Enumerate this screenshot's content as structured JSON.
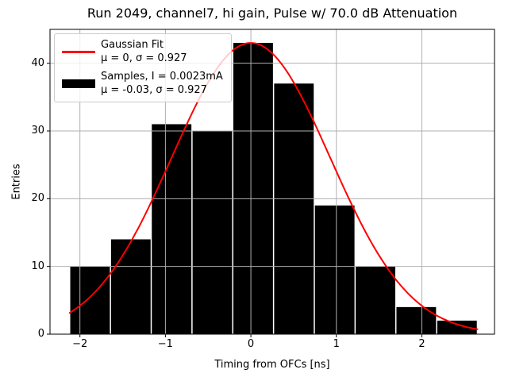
{
  "chart_data": {
    "type": "bar",
    "subtype": "histogram-with-fit",
    "title": "Run 2049, channel7, hi gain, Pulse w/ 70.0 dB Attenuation",
    "xlabel": "Timing from OFCs [ns]",
    "ylabel": "Entries",
    "xlim": [
      -2.35,
      2.85
    ],
    "ylim": [
      0,
      45
    ],
    "xticks": [
      -2,
      -1,
      0,
      1,
      2
    ],
    "xtick_labels": [
      "−2",
      "−1",
      "0",
      "1",
      "2"
    ],
    "yticks": [
      0,
      10,
      20,
      30,
      40
    ],
    "ytick_labels": [
      "0",
      "10",
      "20",
      "30",
      "40"
    ],
    "grid": true,
    "histogram": {
      "bin_edges": [
        -2.12,
        -1.643,
        -1.166,
        -0.689,
        -0.212,
        0.265,
        0.742,
        1.219,
        1.696,
        2.173,
        2.65
      ],
      "counts": [
        10,
        14,
        31,
        30,
        43,
        37,
        19,
        10,
        4,
        2
      ],
      "total_entries": 200
    },
    "fit_curve": {
      "type": "gaussian",
      "mu": 0,
      "sigma": 0.927,
      "amplitude": 43,
      "x_min": -2.12,
      "x_max": 2.65,
      "linewidth": 2
    },
    "colors": {
      "bar": "#000000",
      "fit_line": "#ff0000",
      "grid": "#b0b0b0",
      "spine": "#000000",
      "legend_border": "#cccccc"
    },
    "legend": {
      "position": "upper-left",
      "entries": [
        {
          "handle": "red-line",
          "line1": "Gaussian Fit",
          "line2": "μ = 0, σ = 0.927"
        },
        {
          "handle": "black-thick-line",
          "line1": "Samples, I = 0.0023mA",
          "line2": "μ = -0.03, σ = 0.927"
        }
      ]
    }
  }
}
